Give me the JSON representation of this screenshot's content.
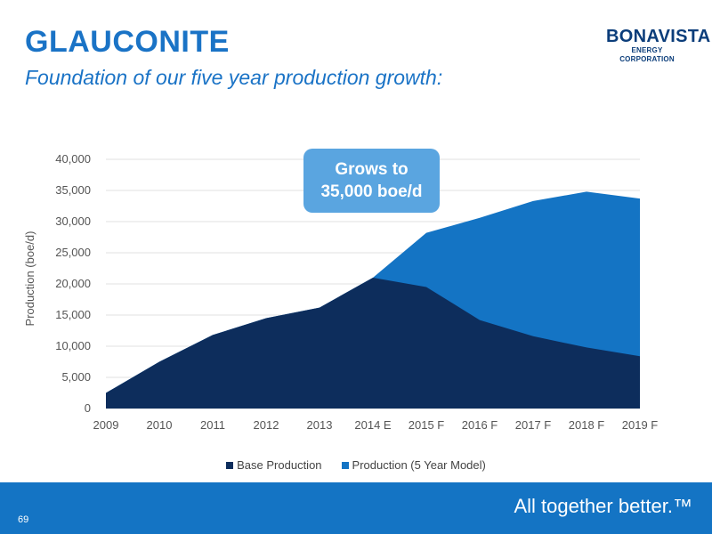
{
  "header": {
    "title": "GLAUCONITE",
    "subtitle": "Foundation of our five year production growth:"
  },
  "logo": {
    "name": "BONAVISTA",
    "sub": "ENERGY CORPORATION",
    "color": "#0b3d7a"
  },
  "callout": {
    "line1": "Grows to",
    "line2": "35,000 boe/d"
  },
  "footer": {
    "page_number": "69",
    "tagline": "All together better.™",
    "background": "#1474c4"
  },
  "chart_data": {
    "type": "area",
    "categories": [
      "2009",
      "2010",
      "2011",
      "2012",
      "2013",
      "2014 E",
      "2015 F",
      "2016 F",
      "2017 F",
      "2018 F",
      "2019 F"
    ],
    "series": [
      {
        "name": "Base Production",
        "color": "#0d2d5c",
        "values": [
          2500,
          7500,
          11800,
          14500,
          16200,
          21000,
          19500,
          14200,
          11600,
          9800,
          8400
        ]
      },
      {
        "name": "Production (5 Year Model)",
        "color": "#1474c4",
        "values": [
          2500,
          7500,
          11800,
          14500,
          16200,
          21000,
          28200,
          30600,
          33300,
          34800,
          33700
        ]
      }
    ],
    "xlabel": "",
    "ylabel": "Production (boe/d)",
    "ylim": [
      0,
      40000
    ],
    "y_ticks": [
      "0",
      "5,000",
      "10,000",
      "15,000",
      "20,000",
      "25,000",
      "30,000",
      "35,000",
      "40,000"
    ],
    "grid": true,
    "legend": "bottom"
  }
}
